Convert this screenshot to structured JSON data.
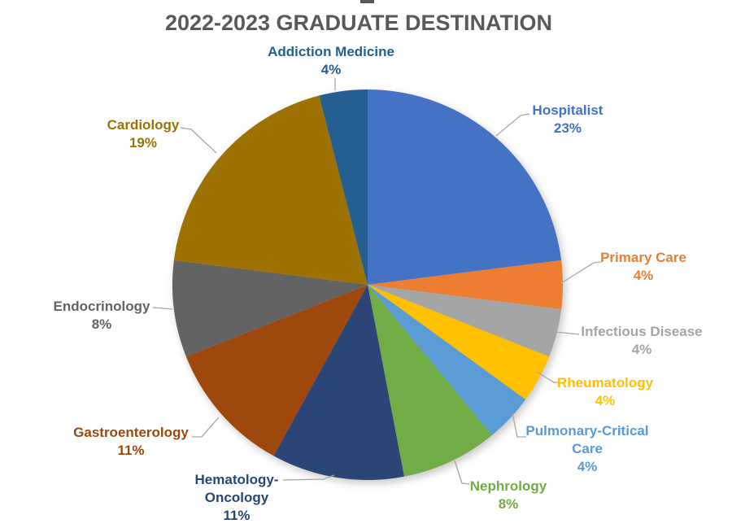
{
  "title": "2022-2023 GRADUATE DESTINATION",
  "title_color": "#595959",
  "background_color": "#FFFFFF",
  "leader_line_color": "#A6A6A6",
  "chart_data": {
    "type": "pie",
    "title": "2022-2023 GRADUATE DESTINATION",
    "unit": "%",
    "start_angle_deg": 0,
    "direction": "clockwise",
    "legend": "none",
    "labels_outside_with_leader_lines": true,
    "label_color_matches_slice": true,
    "slices": [
      {
        "label": "Hospitalist",
        "value": 23,
        "display": "23%",
        "color": "#4472C4",
        "label_lines": [
          "Hospitalist",
          "23%"
        ]
      },
      {
        "label": "Primary Care",
        "value": 4,
        "display": "4%",
        "color": "#ED7D31",
        "label_lines": [
          "Primary Care",
          "4%"
        ]
      },
      {
        "label": "Infectious Disease",
        "value": 4,
        "display": "4%",
        "color": "#A5A5A5",
        "label_lines": [
          "Infectious Disease",
          "4%"
        ]
      },
      {
        "label": "Rheumatology",
        "value": 4,
        "display": "4%",
        "color": "#FFC000",
        "label_lines": [
          "Rheumatology",
          "4%"
        ]
      },
      {
        "label": "Pulmonary-Critical Care",
        "value": 4,
        "display": "4%",
        "color": "#5B9BD5",
        "label_lines": [
          "Pulmonary-Critical",
          "Care",
          "4%"
        ]
      },
      {
        "label": "Nephrology",
        "value": 8,
        "display": "8%",
        "color": "#70AD47",
        "label_lines": [
          "Nephrology",
          "8%"
        ]
      },
      {
        "label": "Hematology-Oncology",
        "value": 11,
        "display": "11%",
        "color": "#2A4576",
        "label_lines": [
          "Hematology-",
          "Oncology",
          "11%"
        ]
      },
      {
        "label": "Gastroenterology",
        "value": 11,
        "display": "11%",
        "color": "#9E480E",
        "label_lines": [
          "Gastroenterology",
          "11%"
        ]
      },
      {
        "label": "Endocrinology",
        "value": 8,
        "display": "8%",
        "color": "#636363",
        "label_lines": [
          "Endocrinology",
          "8%"
        ]
      },
      {
        "label": "Cardiology",
        "value": 19,
        "display": "19%",
        "color": "#9E7103",
        "label_lines": [
          "Cardiology",
          "19%"
        ]
      },
      {
        "label": "Addiction Medicine",
        "value": 4,
        "display": "4%",
        "color": "#255E91",
        "label_lines": [
          "Addiction Medicine",
          "4%"
        ]
      }
    ]
  }
}
